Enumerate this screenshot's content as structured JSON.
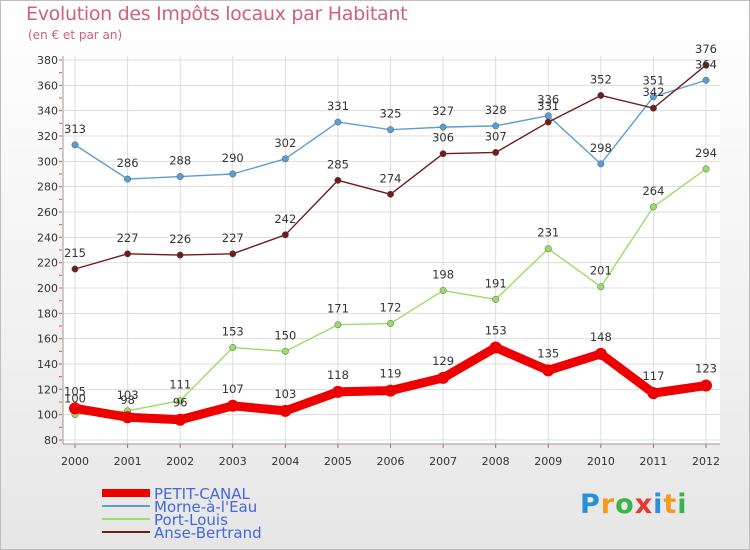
{
  "title": "Evolution des Impôts locaux par Habitant",
  "subtitle": "(en € et par an)",
  "logo": "Proxiti",
  "chart_data": {
    "type": "line",
    "x": [
      "2000",
      "2001",
      "2002",
      "2003",
      "2004",
      "2005",
      "2006",
      "2007",
      "2008",
      "2009",
      "2010",
      "2011",
      "2012"
    ],
    "ylim": [
      80,
      380
    ],
    "yticks": [
      80,
      100,
      120,
      140,
      160,
      180,
      200,
      220,
      240,
      260,
      280,
      300,
      320,
      340,
      360,
      380
    ],
    "grid": true,
    "legend_position": "bottom-left",
    "series": [
      {
        "name": "PETIT-CANAL",
        "color": "#ee0000",
        "values": [
          105,
          98,
          96,
          107,
          103,
          118,
          119,
          129,
          153,
          135,
          148,
          117,
          123
        ],
        "labels": [
          "105",
          "98",
          "96",
          "107",
          "103",
          "118",
          "119",
          "129",
          "153",
          "135",
          "148",
          "117",
          "123"
        ]
      },
      {
        "name": "Morne-à-l'Eau",
        "color": "#5a9fd4",
        "values": [
          313,
          286,
          288,
          290,
          302,
          331,
          325,
          327,
          328,
          336,
          298,
          351,
          364
        ],
        "labels": [
          "313",
          "286",
          "288",
          "290",
          "302",
          "331",
          "325",
          "327",
          "328",
          "336",
          "298",
          "351",
          "364"
        ]
      },
      {
        "name": "Port-Louis",
        "color": "#99dd66",
        "values": [
          100,
          103,
          111,
          153,
          150,
          171,
          172,
          198,
          191,
          231,
          201,
          264,
          294
        ],
        "labels": [
          "100",
          "103",
          "111",
          "153",
          "150",
          "171",
          "172",
          "198",
          "191",
          "231",
          "201",
          "264",
          "294"
        ]
      },
      {
        "name": "Anse-Bertrand",
        "color": "#6e1c1c",
        "values": [
          215,
          227,
          226,
          227,
          242,
          285,
          274,
          306,
          307,
          331,
          352,
          342,
          376
        ],
        "labels": [
          "215",
          "227",
          "226",
          "227",
          "242",
          "285",
          "274",
          "306",
          "307",
          "331",
          "352",
          "342",
          "376"
        ]
      }
    ]
  }
}
